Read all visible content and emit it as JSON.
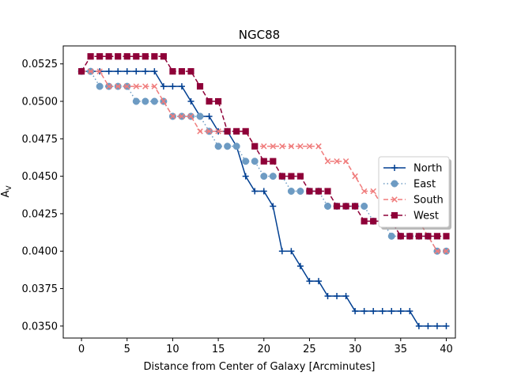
{
  "chart_data": {
    "type": "line",
    "title": "NGC88",
    "xlabel": "Distance from Center of Galaxy [Arcminutes]",
    "ylabel": "A",
    "ylabel_sub": "V",
    "xlim": [
      -2,
      41
    ],
    "ylim": [
      0.0342,
      0.0537
    ],
    "xticks": [
      0,
      5,
      10,
      15,
      20,
      25,
      30,
      35,
      40
    ],
    "yticks": [
      0.035,
      0.0375,
      0.04,
      0.0425,
      0.045,
      0.0475,
      0.05,
      0.0525
    ],
    "ytick_labels": [
      "0.0350",
      "0.0375",
      "0.0400",
      "0.0425",
      "0.0450",
      "0.0475",
      "0.0500",
      "0.0525"
    ],
    "legend_position": "center-right",
    "x": [
      0,
      1,
      2,
      3,
      4,
      5,
      6,
      7,
      8,
      9,
      10,
      11,
      12,
      13,
      14,
      15,
      16,
      17,
      18,
      19,
      20,
      21,
      22,
      23,
      24,
      25,
      26,
      27,
      28,
      29,
      30,
      31,
      32,
      33,
      34,
      35,
      36,
      37,
      38,
      39,
      40
    ],
    "series": [
      {
        "name": "North",
        "color": "#003f91",
        "linestyle": "solid",
        "marker": "plus",
        "values": [
          0.052,
          0.052,
          0.052,
          0.052,
          0.052,
          0.052,
          0.052,
          0.052,
          0.052,
          0.051,
          0.051,
          0.051,
          0.05,
          0.049,
          0.049,
          0.048,
          0.048,
          0.047,
          0.045,
          0.044,
          0.044,
          0.043,
          0.04,
          0.04,
          0.039,
          0.038,
          0.038,
          0.037,
          0.037,
          0.037,
          0.036,
          0.036,
          0.036,
          0.036,
          0.036,
          0.036,
          0.036,
          0.035,
          0.035,
          0.035,
          0.035
        ]
      },
      {
        "name": "East",
        "color": "#6d9bc3",
        "linestyle": "dotted",
        "marker": "circle",
        "values": [
          0.052,
          0.052,
          0.051,
          0.051,
          0.051,
          0.051,
          0.05,
          0.05,
          0.05,
          0.05,
          0.049,
          0.049,
          0.049,
          0.049,
          0.048,
          0.047,
          0.047,
          0.047,
          0.046,
          0.046,
          0.045,
          0.045,
          0.045,
          0.044,
          0.044,
          0.044,
          0.044,
          0.043,
          0.043,
          0.043,
          0.043,
          0.043,
          0.042,
          0.042,
          0.041,
          0.041,
          0.041,
          0.041,
          0.041,
          0.04,
          0.04
        ]
      },
      {
        "name": "South",
        "color": "#f07c7c",
        "linestyle": "dashed",
        "marker": "x",
        "values": [
          0.052,
          0.052,
          0.052,
          0.051,
          0.051,
          0.051,
          0.051,
          0.051,
          0.051,
          0.05,
          0.049,
          0.049,
          0.049,
          0.048,
          0.048,
          0.048,
          0.048,
          0.048,
          0.048,
          0.047,
          0.047,
          0.047,
          0.047,
          0.047,
          0.047,
          0.047,
          0.047,
          0.046,
          0.046,
          0.046,
          0.045,
          0.044,
          0.044,
          0.043,
          0.042,
          0.042,
          0.042,
          0.042,
          0.041,
          0.04,
          0.04
        ]
      },
      {
        "name": "West",
        "color": "#8e0038",
        "linestyle": "dashed",
        "marker": "square",
        "values": [
          0.052,
          0.053,
          0.053,
          0.053,
          0.053,
          0.053,
          0.053,
          0.053,
          0.053,
          0.053,
          0.052,
          0.052,
          0.052,
          0.051,
          0.05,
          0.05,
          0.048,
          0.048,
          0.048,
          0.047,
          0.046,
          0.046,
          0.045,
          0.045,
          0.045,
          0.044,
          0.044,
          0.044,
          0.043,
          0.043,
          0.043,
          0.042,
          0.042,
          0.042,
          0.042,
          0.041,
          0.041,
          0.041,
          0.041,
          0.041,
          0.041
        ]
      }
    ]
  }
}
